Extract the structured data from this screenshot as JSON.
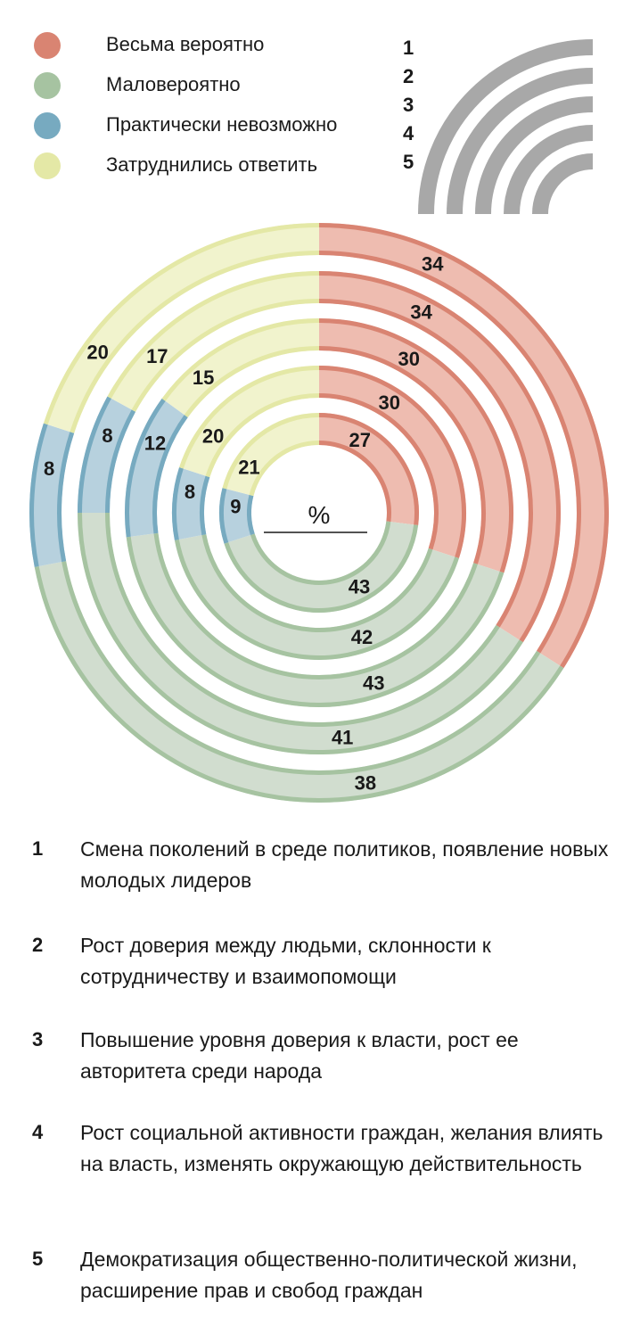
{
  "legend": [
    {
      "label": "Весьма вероятно",
      "color": "#d98472"
    },
    {
      "label": "Маловероятно",
      "color": "#a6c3a1"
    },
    {
      "label": "Практически невозможно",
      "color": "#77aac0"
    },
    {
      "label": "Затруднились ответить",
      "color": "#e4e8a6"
    }
  ],
  "key_numbers": [
    "1",
    "2",
    "3",
    "4",
    "5"
  ],
  "chart_data": {
    "type": "radial-bar",
    "unit_label": "%",
    "categories": [
      "Весьма вероятно",
      "Маловероятно",
      "Практически невозможно",
      "Затруднились ответить"
    ],
    "rings": [
      {
        "id": "1",
        "values": [
          34,
          38,
          8,
          20
        ]
      },
      {
        "id": "2",
        "values": [
          34,
          41,
          8,
          17
        ]
      },
      {
        "id": "3",
        "values": [
          30,
          43,
          12,
          15
        ]
      },
      {
        "id": "4",
        "values": [
          30,
          42,
          8,
          20
        ]
      },
      {
        "id": "5",
        "values": [
          27,
          43,
          9,
          21
        ]
      }
    ],
    "colors": {
      "strong": [
        "#d98472",
        "#a6c3a1",
        "#77aac0",
        "#e4e8a6"
      ],
      "light": [
        "#eebcb0",
        "#d1ddcf",
        "#b7d1de",
        "#f1f3cd"
      ]
    }
  },
  "items": [
    {
      "num": "1",
      "text": "Смена поколений в среде политиков, появление новых молодых лидеров"
    },
    {
      "num": "2",
      "text": "Рост доверия между людьми, склонности к сотрудничеству и взаимопомощи"
    },
    {
      "num": "3",
      "text": "Повышение уровня доверия к власти, рост ее авторитета среди народа"
    },
    {
      "num": "4",
      "text": "Рост социальной активности граждан, желания влиять на власть, изменять окружающую действительность"
    },
    {
      "num": "5",
      "text": "Демократизация общественно-политической жизни, расширение прав и свобод граждан"
    }
  ]
}
